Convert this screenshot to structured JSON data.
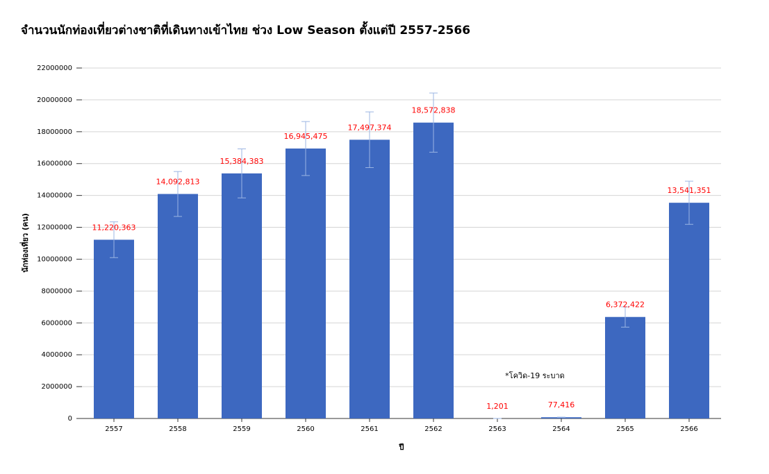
{
  "chart_data": {
    "type": "bar",
    "title": "จำนวนนักท่องเที่ยวต่างชาติที่เดินทางเข้าไทย ช่วง Low Season ตั้งแต่ปี 2557-2566",
    "x_label": "ปี",
    "y_label": "นักท่องเที่ยว (คน)",
    "annotation": "*โควิด-19 ระบาด",
    "categories": [
      "2557",
      "2558",
      "2559",
      "2560",
      "2561",
      "2562",
      "2563",
      "2564",
      "2565",
      "2566"
    ],
    "values": [
      11220363,
      14092813,
      15384383,
      16945475,
      17497374,
      18572838,
      1201,
      77416,
      6372422,
      13541351
    ],
    "value_labels": [
      "11,220,363",
      "14,092,813",
      "15,384,383",
      "16,945,475",
      "17,497,374",
      "18,572,838",
      "1,201",
      "77,416",
      "6,372,422",
      "13,541,351"
    ],
    "errors": [
      1122036,
      1409281,
      1538438,
      1694548,
      1749737,
      1857284,
      120,
      7742,
      637242,
      1354135
    ],
    "color": "#3d68c0",
    "error_color": "#9bb5e3",
    "label_color": "#ff0000",
    "ylim": [
      0,
      22000000
    ],
    "yticks": [
      0,
      2000000,
      4000000,
      6000000,
      8000000,
      10000000,
      12000000,
      14000000,
      16000000,
      18000000,
      20000000,
      22000000
    ],
    "grid": true
  }
}
